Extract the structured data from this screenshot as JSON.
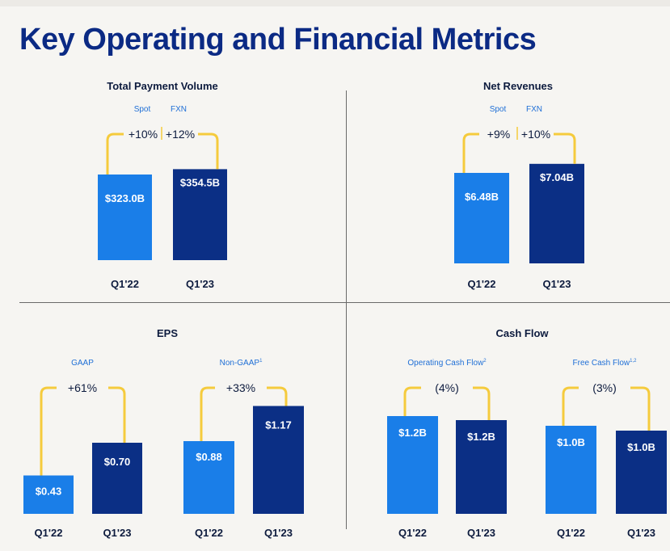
{
  "page_title": "Key Operating and Financial Metrics",
  "colors": {
    "q1_22": "#1a7ee8",
    "q1_23": "#0b2f85",
    "connector": "#f5cb3d",
    "title": "#0b2a84",
    "text": "#0d1b3e",
    "sublabel": "#1f6fd6"
  },
  "chart_data": [
    {
      "type": "bar",
      "title": "Total Payment Volume",
      "categories": [
        "Q1'22",
        "Q1'23"
      ],
      "values": [
        323.0,
        354.5
      ],
      "value_labels": [
        "$323.0B",
        "$354.5B"
      ],
      "unit": "$B",
      "sublabels": [
        "Spot",
        "FXN"
      ],
      "changes": [
        "+10%",
        "+12%"
      ]
    },
    {
      "type": "bar",
      "title": "Net Revenues",
      "categories": [
        "Q1'22",
        "Q1'23"
      ],
      "values": [
        6.48,
        7.04
      ],
      "value_labels": [
        "$6.48B",
        "$7.04B"
      ],
      "unit": "$B",
      "sublabels": [
        "Spot",
        "FXN"
      ],
      "changes": [
        "+9%",
        "+10%"
      ]
    },
    {
      "type": "bar",
      "title": "EPS",
      "groups": [
        {
          "label": "GAAP",
          "sup": "",
          "categories": [
            "Q1'22",
            "Q1'23"
          ],
          "values": [
            0.43,
            0.7
          ],
          "value_labels": [
            "$0.43",
            "$0.70"
          ],
          "change": "+61%"
        },
        {
          "label": "Non-GAAP",
          "sup": "1",
          "categories": [
            "Q1'22",
            "Q1'23"
          ],
          "values": [
            0.88,
            1.17
          ],
          "value_labels": [
            "$0.88",
            "$1.17"
          ],
          "change": "+33%"
        }
      ]
    },
    {
      "type": "bar",
      "title": "Cash Flow",
      "groups": [
        {
          "label": "Operating Cash Flow",
          "sup": "2",
          "categories": [
            "Q1'22",
            "Q1'23"
          ],
          "values": [
            1.2,
            1.2
          ],
          "value_labels": [
            "$1.2B",
            "$1.2B"
          ],
          "change": "(4%)"
        },
        {
          "label": "Free Cash Flow",
          "sup": "1,2",
          "categories": [
            "Q1'22",
            "Q1'23"
          ],
          "values": [
            1.0,
            1.0
          ],
          "value_labels": [
            "$1.0B",
            "$1.0B"
          ],
          "change": "(3%)"
        }
      ]
    }
  ]
}
